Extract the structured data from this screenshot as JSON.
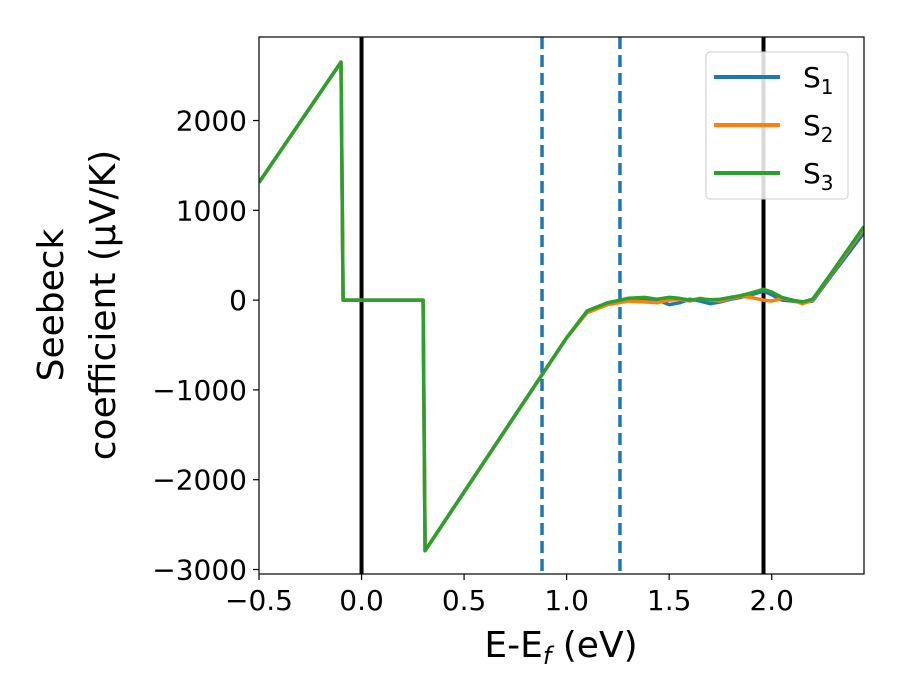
{
  "chart_data": {
    "type": "line",
    "xlabel_main": "E-E",
    "xlabel_sub": "f",
    "xlabel_unit": " (eV)",
    "ylabel_line1": "Seebeck",
    "ylabel_line2": "coefficient  (μV/K)",
    "xlim": [
      -0.5,
      2.45
    ],
    "ylim": [
      -3050,
      2930
    ],
    "xticks": [
      -0.5,
      0.0,
      0.5,
      1.0,
      1.5,
      2.0
    ],
    "xtick_labels": [
      "−0.5",
      "0.0",
      "0.5",
      "1.0",
      "1.5",
      "2.0"
    ],
    "yticks": [
      -3000,
      -2000,
      -1000,
      0,
      1000,
      2000
    ],
    "ytick_labels": [
      "−3000",
      "−2000",
      "−1000",
      "0",
      "1000",
      "2000"
    ],
    "grid": false,
    "legend_position": "top-right",
    "vlines": [
      {
        "x": 0.0,
        "style": "solid",
        "color": "#000000"
      },
      {
        "x": 1.96,
        "style": "solid",
        "color": "#000000"
      },
      {
        "x": 0.88,
        "style": "dashed",
        "color": "#1f77b4"
      },
      {
        "x": 1.26,
        "style": "dashed",
        "color": "#1f77b4"
      }
    ],
    "series": [
      {
        "name": "S",
        "sub": "1",
        "color": "#1f77b4",
        "x": [
          -0.5,
          -0.1,
          -0.09,
          0.3,
          0.31,
          1.0,
          1.1,
          1.2,
          1.3,
          1.38,
          1.44,
          1.5,
          1.55,
          1.6,
          1.65,
          1.7,
          1.75,
          1.8,
          1.85,
          1.9,
          1.96,
          2.0,
          2.05,
          2.1,
          2.15,
          2.2,
          2.3,
          2.45
        ],
        "y": [
          1310,
          2650,
          0,
          0,
          -2790,
          -420,
          -130,
          -30,
          10,
          15,
          5,
          -50,
          -30,
          10,
          -10,
          -40,
          -20,
          10,
          30,
          60,
          100,
          60,
          0,
          -10,
          -30,
          -10,
          300,
          750
        ]
      },
      {
        "name": "S",
        "sub": "2",
        "color": "#ff7f0e",
        "x": [
          -0.5,
          -0.1,
          -0.09,
          0.3,
          0.31,
          1.0,
          1.1,
          1.2,
          1.3,
          1.38,
          1.44,
          1.5,
          1.55,
          1.6,
          1.65,
          1.7,
          1.75,
          1.8,
          1.85,
          1.9,
          1.96,
          2.0,
          2.05,
          2.1,
          2.15,
          2.2,
          2.3,
          2.45
        ],
        "y": [
          1310,
          2650,
          0,
          0,
          -2790,
          -420,
          -140,
          -50,
          -10,
          -20,
          -30,
          0,
          10,
          -10,
          20,
          0,
          -10,
          20,
          40,
          30,
          0,
          -10,
          20,
          0,
          -40,
          0,
          320,
          800
        ]
      },
      {
        "name": "S",
        "sub": "3",
        "color": "#2ca02c",
        "x": [
          -0.5,
          -0.1,
          -0.09,
          0.3,
          0.31,
          1.0,
          1.1,
          1.2,
          1.3,
          1.38,
          1.44,
          1.5,
          1.55,
          1.6,
          1.65,
          1.7,
          1.75,
          1.8,
          1.85,
          1.9,
          1.96,
          2.0,
          2.05,
          2.1,
          2.15,
          2.2,
          2.3,
          2.45
        ],
        "y": [
          1310,
          2650,
          0,
          0,
          -2790,
          -420,
          -120,
          -30,
          20,
          30,
          10,
          30,
          20,
          0,
          15,
          5,
          10,
          30,
          50,
          80,
          120,
          90,
          30,
          0,
          -20,
          10,
          330,
          820
        ]
      }
    ]
  }
}
